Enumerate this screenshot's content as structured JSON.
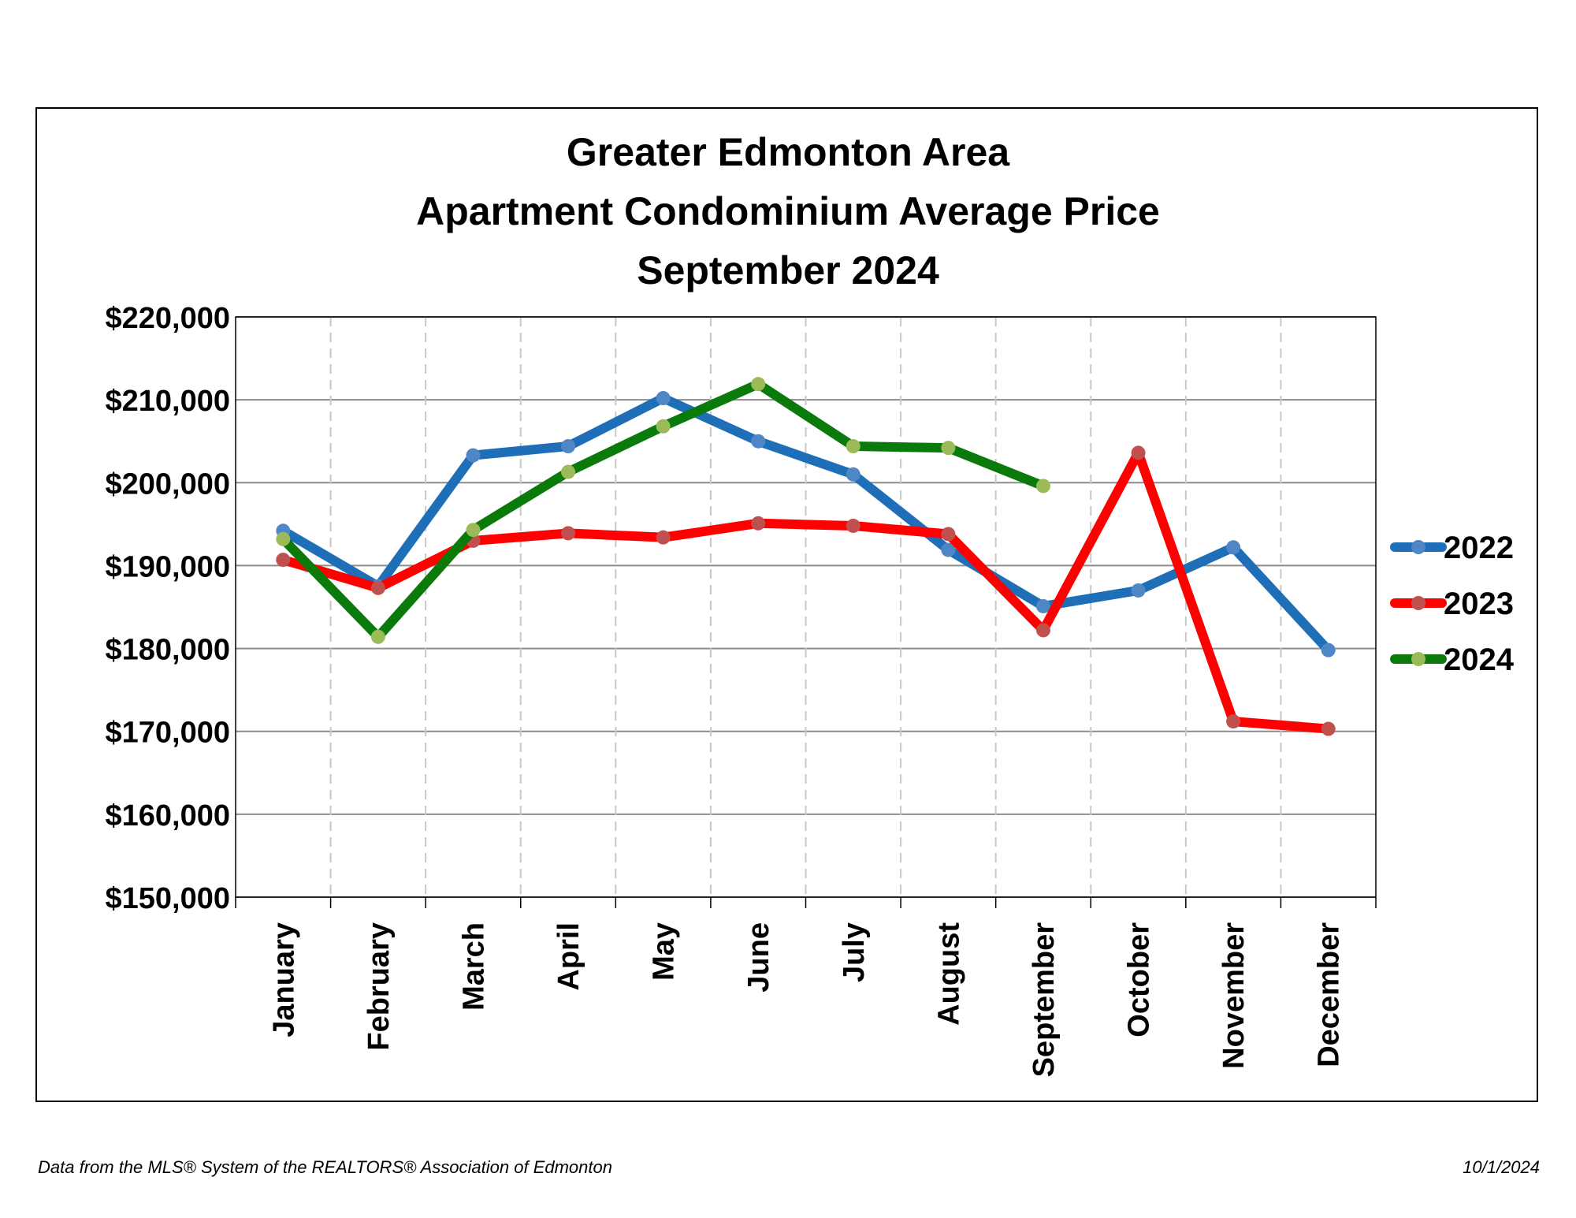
{
  "chart_data": {
    "type": "line",
    "title": [
      "Greater Edmonton Area",
      "Apartment Condominium Average Price",
      "September 2024"
    ],
    "xlabel": "",
    "ylabel": "",
    "categories": [
      "January",
      "February",
      "March",
      "April",
      "May",
      "June",
      "July",
      "August",
      "September",
      "October",
      "November",
      "December"
    ],
    "ylim": [
      150000,
      220000
    ],
    "y_ticks": [
      150000,
      160000,
      170000,
      180000,
      190000,
      200000,
      210000,
      220000
    ],
    "y_tick_labels": [
      "$150,000",
      "$160,000",
      "$170,000",
      "$180,000",
      "$190,000",
      "$200,000",
      "$210,000",
      "$220,000"
    ],
    "grid": {
      "horizontal": true,
      "vertical_dashed": true
    },
    "legend_position": "right",
    "series": [
      {
        "name": "2022",
        "color": "#1f6fb8",
        "marker_color": "#4f86c6",
        "values": [
          194200,
          187500,
          203300,
          204400,
          210200,
          205000,
          201000,
          191900,
          185100,
          187000,
          192200,
          179800
        ]
      },
      {
        "name": "2023",
        "color": "#ff0000",
        "marker_color": "#c0504d",
        "values": [
          190700,
          187300,
          193000,
          193900,
          193400,
          195100,
          194800,
          193800,
          182200,
          203600,
          171200,
          170300
        ]
      },
      {
        "name": "2024",
        "color": "#0a7a0a",
        "marker_color": "#9bbb59",
        "values": [
          193200,
          181400,
          194300,
          201300,
          206800,
          211900,
          204400,
          204200,
          199600,
          null,
          null,
          null
        ]
      }
    ]
  },
  "footer": {
    "source": "Data from the MLS® System of the REALTORS® Association of Edmonton",
    "date": "10/1/2024"
  }
}
